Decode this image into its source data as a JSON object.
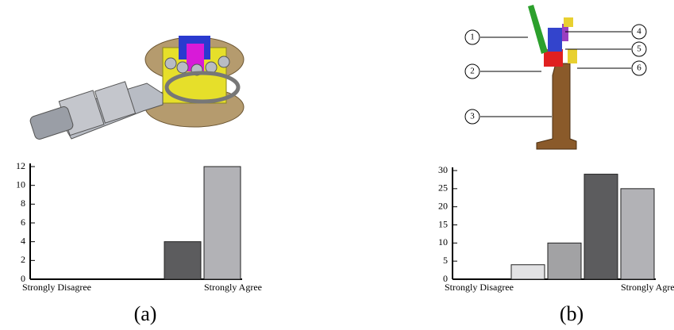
{
  "chart_data": [
    {
      "type": "bar",
      "categories": [
        "Strongly Disagree",
        null,
        null,
        null,
        "Strongly Agree"
      ],
      "values": [
        0,
        0,
        0,
        4,
        12
      ],
      "colors": [
        "#5c5c5e",
        "#5c5c5e",
        "#5c5c5e",
        "#5c5c5e",
        "#b2b2b6"
      ],
      "ylim": [
        0,
        12
      ],
      "yticks": [
        0,
        2,
        4,
        6,
        8,
        10,
        12
      ]
    },
    {
      "type": "bar",
      "categories": [
        "Strongly Disagree",
        null,
        null,
        null,
        "Strongly Agree"
      ],
      "values": [
        0,
        4,
        10,
        29,
        25
      ],
      "colors": [
        "#e2e2e4",
        "#e2e2e4",
        "#a2a2a4",
        "#5c5c5e",
        "#b2b2b6"
      ],
      "ylim": [
        0,
        30
      ],
      "yticks": [
        0,
        5,
        10,
        15,
        20,
        25,
        30
      ]
    }
  ],
  "figure": {
    "captions": [
      "(a)",
      "(b)"
    ],
    "callouts": [
      "1",
      "2",
      "3",
      "4",
      "5",
      "6"
    ]
  }
}
